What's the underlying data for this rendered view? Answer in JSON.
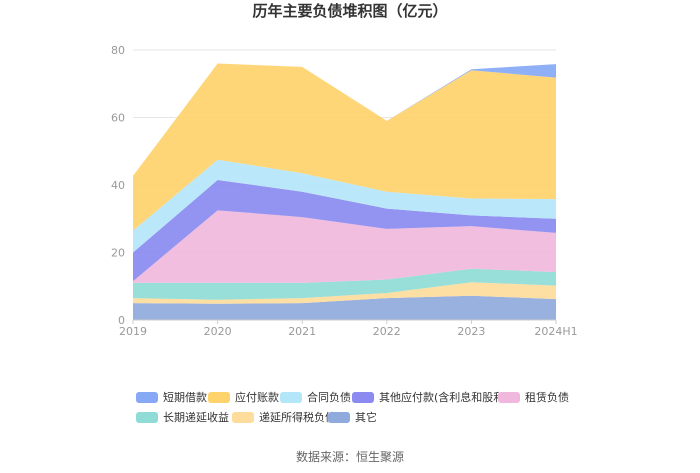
{
  "chart_data": {
    "type": "area",
    "stacked": true,
    "title": "历年主要负债堆积图（亿元）",
    "x": [
      "2019",
      "2020",
      "2021",
      "2022",
      "2023",
      "2024H1"
    ],
    "ylim": [
      0,
      80
    ],
    "yticks": [
      "0",
      "20",
      "40",
      "60",
      "80"
    ],
    "grid": true,
    "legend_position": "bottom",
    "series": [
      {
        "name": "其它",
        "color": "#8faadc",
        "values": [
          5.0,
          4.8,
          5.0,
          6.5,
          7.2,
          6.2
        ]
      },
      {
        "name": "递延所得税负债",
        "color": "#fddc9c",
        "values": [
          1.5,
          1.2,
          1.5,
          1.5,
          4.0,
          4.0
        ]
      },
      {
        "name": "长期递延收益",
        "color": "#8fdbd6",
        "values": [
          4.5,
          5.0,
          4.5,
          4.0,
          4.0,
          4.0
        ]
      },
      {
        "name": "租赁负债",
        "color": "#f0b8dc",
        "values": [
          0.5,
          21.5,
          19.5,
          15.0,
          12.6,
          11.6
        ]
      },
      {
        "name": "其他应付款(含利息和股利)",
        "color": "#8a8af0",
        "values": [
          8.5,
          9.0,
          7.5,
          6.0,
          3.2,
          4.2
        ]
      },
      {
        "name": "合同负债",
        "color": "#b4e6fa",
        "values": [
          6.5,
          6.0,
          5.5,
          5.0,
          5.0,
          5.8
        ]
      },
      {
        "name": "应付账款",
        "color": "#fed36c",
        "values": [
          16.2,
          28.5,
          31.5,
          21.0,
          38.0,
          36.0
        ]
      },
      {
        "name": "短期借款",
        "color": "#86a8f5",
        "values": [
          0,
          0,
          0,
          0,
          0.3,
          4.0
        ]
      }
    ],
    "source": "数据来源：恒生聚源"
  }
}
